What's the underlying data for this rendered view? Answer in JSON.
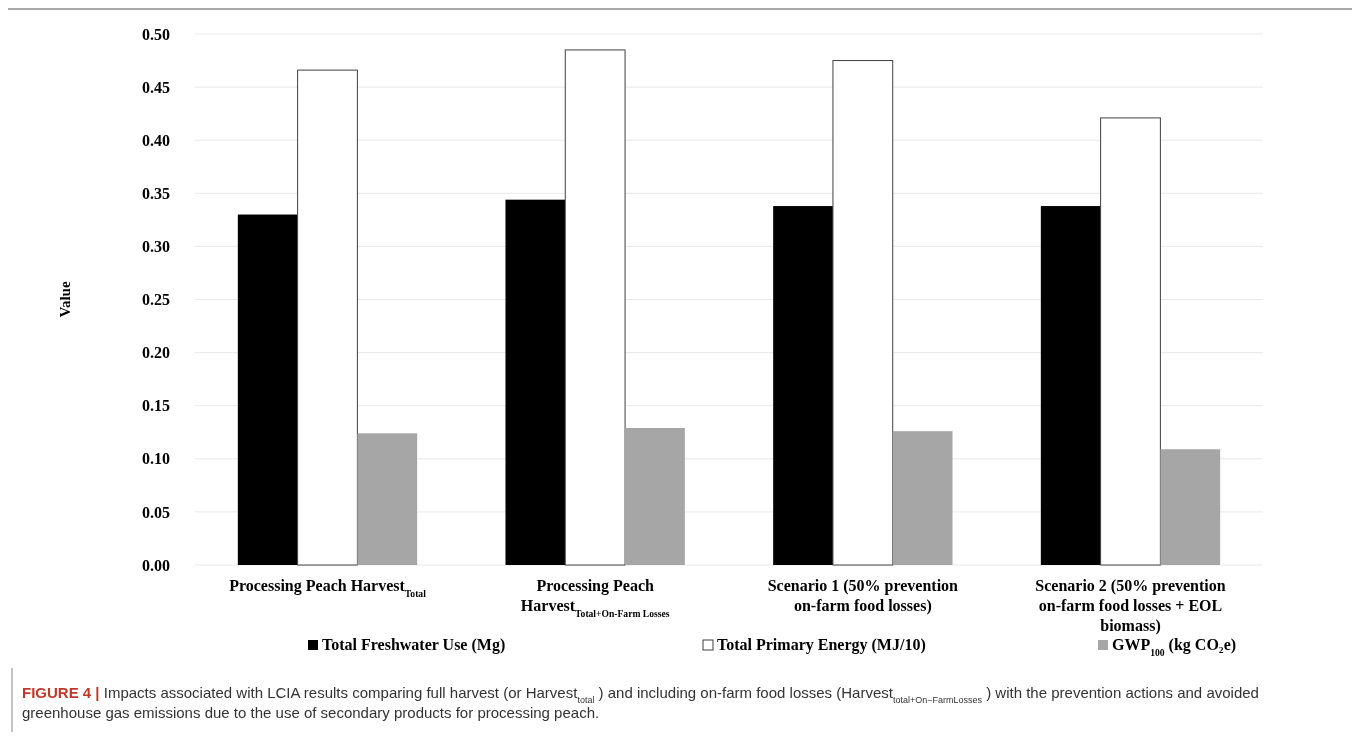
{
  "chart_data": {
    "type": "bar",
    "ylabel": "Value",
    "categories": [
      "Processing Peach Harvest$_{Total}$",
      "Processing Peach Harvest$_{Total+On-Farm Losses}$",
      "Scenario 1 (50% prevention on-farm food losses)",
      "Scenario 2 (50% prevention on-farm food losses + EOL biomass)"
    ],
    "series": [
      {
        "name": "Total Freshwater Use (Mg)",
        "color": "#000000",
        "values": [
          0.33,
          0.344,
          0.338,
          0.338
        ]
      },
      {
        "name": "Total Primary Energy (MJ/10)",
        "color": "#ffffff",
        "values": [
          0.466,
          0.485,
          0.475,
          0.421
        ]
      },
      {
        "name": "GWP$_{100}$ (kg CO₂e)",
        "color": "#a6a6a6",
        "values": [
          0.124,
          0.129,
          0.126,
          0.109
        ]
      }
    ],
    "ylim": [
      0,
      0.5
    ],
    "yticks": [
      {
        "value": 0,
        "label": "0.00"
      },
      {
        "value": 0.05,
        "label": "0.05"
      },
      {
        "value": 0.1,
        "label": "0.10"
      },
      {
        "value": 0.15,
        "label": "0.15"
      },
      {
        "value": 0.2,
        "label": "0.20"
      },
      {
        "value": 0.25,
        "label": "0.25"
      },
      {
        "value": 0.3,
        "label": "0.30"
      },
      {
        "value": 0.35,
        "label": "0.35"
      },
      {
        "value": 0.4,
        "label": "0.40"
      },
      {
        "value": 0.45,
        "label": "0.45"
      },
      {
        "value": 0.5,
        "label": "0.50"
      }
    ],
    "grid": "y",
    "legend": "bottom",
    "annotations": [
      "FIGURE 4 | Impacts associated with LCIA results comparing full harvest (or Harvest$_{total}$) and including on-farm food losses (Harvest$_{total+On−FarmLosses}$) with the prevention actions and avoided greenhouse gas emissions due to the use of secondary products for processing peach."
    ]
  }
}
